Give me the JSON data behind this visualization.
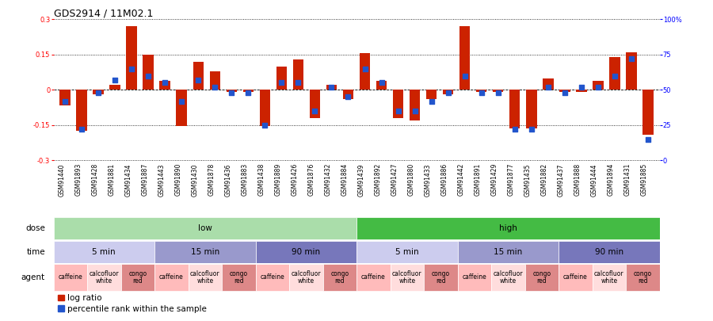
{
  "title": "GDS2914 / 11M02.1",
  "samples": [
    "GSM91440",
    "GSM91893",
    "GSM91428",
    "GSM91881",
    "GSM91434",
    "GSM91887",
    "GSM91443",
    "GSM91890",
    "GSM91430",
    "GSM91878",
    "GSM91436",
    "GSM91883",
    "GSM91438",
    "GSM91889",
    "GSM91426",
    "GSM91876",
    "GSM91432",
    "GSM91884",
    "GSM91439",
    "GSM91892",
    "GSM91427",
    "GSM91880",
    "GSM91433",
    "GSM91886",
    "GSM91442",
    "GSM91891",
    "GSM91429",
    "GSM91877",
    "GSM91435",
    "GSM91882",
    "GSM91437",
    "GSM91888",
    "GSM91444",
    "GSM91894",
    "GSM91431",
    "GSM91885"
  ],
  "log_ratio": [
    -0.065,
    -0.175,
    -0.02,
    0.02,
    0.27,
    0.15,
    0.04,
    -0.155,
    0.12,
    0.08,
    -0.01,
    -0.01,
    -0.155,
    0.1,
    0.13,
    -0.12,
    0.02,
    -0.04,
    0.155,
    0.04,
    -0.12,
    -0.13,
    -0.04,
    -0.02,
    0.27,
    -0.01,
    -0.01,
    -0.165,
    -0.165,
    0.05,
    -0.01,
    -0.01,
    0.04,
    0.14,
    0.16,
    -0.19
  ],
  "percentile_rank": [
    42,
    22,
    48,
    57,
    65,
    60,
    55,
    42,
    57,
    52,
    48,
    48,
    25,
    55,
    55,
    35,
    52,
    45,
    65,
    55,
    35,
    35,
    42,
    48,
    60,
    48,
    48,
    22,
    22,
    52,
    48,
    52,
    52,
    60,
    72,
    15
  ],
  "ylim": [
    -0.3,
    0.3
  ],
  "yticks": [
    -0.3,
    -0.15,
    0,
    0.15,
    0.3
  ],
  "yticks_right": [
    0,
    25,
    50,
    75,
    100
  ],
  "bar_color": "#cc2200",
  "dot_color": "#2255cc",
  "bg_color": "#ffffff",
  "dose_groups": [
    {
      "label": "low",
      "start": 0,
      "end": 18,
      "color": "#aaddaa"
    },
    {
      "label": "high",
      "start": 18,
      "end": 36,
      "color": "#44bb44"
    }
  ],
  "time_groups": [
    {
      "label": "5 min",
      "start": 0,
      "end": 6,
      "color": "#ccccee"
    },
    {
      "label": "15 min",
      "start": 6,
      "end": 12,
      "color": "#9999cc"
    },
    {
      "label": "90 min",
      "start": 12,
      "end": 18,
      "color": "#7777bb"
    },
    {
      "label": "5 min",
      "start": 18,
      "end": 24,
      "color": "#ccccee"
    },
    {
      "label": "15 min",
      "start": 24,
      "end": 30,
      "color": "#9999cc"
    },
    {
      "label": "90 min",
      "start": 30,
      "end": 36,
      "color": "#7777bb"
    }
  ],
  "agent_groups": [
    {
      "label": "caffeine",
      "start": 0,
      "end": 2,
      "color": "#ffbbbb"
    },
    {
      "label": "calcofluor\nwhite",
      "start": 2,
      "end": 4,
      "color": "#ffdddd"
    },
    {
      "label": "congo\nred",
      "start": 4,
      "end": 6,
      "color": "#dd8888"
    },
    {
      "label": "caffeine",
      "start": 6,
      "end": 8,
      "color": "#ffbbbb"
    },
    {
      "label": "calcofluor\nwhite",
      "start": 8,
      "end": 10,
      "color": "#ffdddd"
    },
    {
      "label": "congo\nred",
      "start": 10,
      "end": 12,
      "color": "#dd8888"
    },
    {
      "label": "caffeine",
      "start": 12,
      "end": 14,
      "color": "#ffbbbb"
    },
    {
      "label": "calcofluor\nwhite",
      "start": 14,
      "end": 16,
      "color": "#ffdddd"
    },
    {
      "label": "congo\nred",
      "start": 16,
      "end": 18,
      "color": "#dd8888"
    },
    {
      "label": "caffeine",
      "start": 18,
      "end": 20,
      "color": "#ffbbbb"
    },
    {
      "label": "calcofluor\nwhite",
      "start": 20,
      "end": 22,
      "color": "#ffdddd"
    },
    {
      "label": "congo\nred",
      "start": 22,
      "end": 24,
      "color": "#dd8888"
    },
    {
      "label": "caffeine",
      "start": 24,
      "end": 26,
      "color": "#ffbbbb"
    },
    {
      "label": "calcofluor\nwhite",
      "start": 26,
      "end": 28,
      "color": "#ffdddd"
    },
    {
      "label": "congo\nred",
      "start": 28,
      "end": 30,
      "color": "#dd8888"
    },
    {
      "label": "caffeine",
      "start": 30,
      "end": 32,
      "color": "#ffbbbb"
    },
    {
      "label": "calcofluor\nwhite",
      "start": 32,
      "end": 34,
      "color": "#ffdddd"
    },
    {
      "label": "congo\nred",
      "start": 34,
      "end": 36,
      "color": "#dd8888"
    }
  ],
  "tick_fontsize": 6.0,
  "sample_fontsize": 5.5,
  "row_fontsize": 7.5,
  "agent_fontsize": 5.5,
  "legend_fontsize": 7.5,
  "title_fontsize": 9
}
